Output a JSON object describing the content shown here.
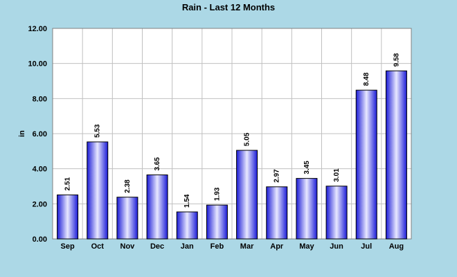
{
  "chart_data": {
    "type": "bar",
    "title": "Rain - Last 12 Months",
    "ylabel": "in",
    "xlabel": "",
    "categories": [
      "Sep",
      "Oct",
      "Nov",
      "Dec",
      "Jan",
      "Feb",
      "Mar",
      "Apr",
      "May",
      "Jun",
      "Jul",
      "Aug"
    ],
    "values": [
      2.51,
      5.53,
      2.38,
      3.65,
      1.54,
      1.93,
      5.05,
      2.97,
      3.45,
      3.01,
      8.48,
      9.58
    ],
    "value_labels": [
      "2.51",
      "5.53",
      "2.38",
      "3.65",
      "1.54",
      "1.93",
      "5.05",
      "2.97",
      "3.45",
      "3.01",
      "8.48",
      "9.58"
    ],
    "ylim": [
      0,
      12
    ],
    "yticks": [
      "0.00",
      "2.00",
      "4.00",
      "6.00",
      "8.00",
      "10.00",
      "12.00"
    ],
    "grid": true,
    "legend": "none",
    "colors": {
      "page_background": "#acd8e6",
      "plot_background": "#ffffff",
      "bar_dark": "#1a1ad6",
      "bar_light": "#e8e8ff",
      "bar_outline": "#000000",
      "grid": "#c0c0c0"
    }
  }
}
